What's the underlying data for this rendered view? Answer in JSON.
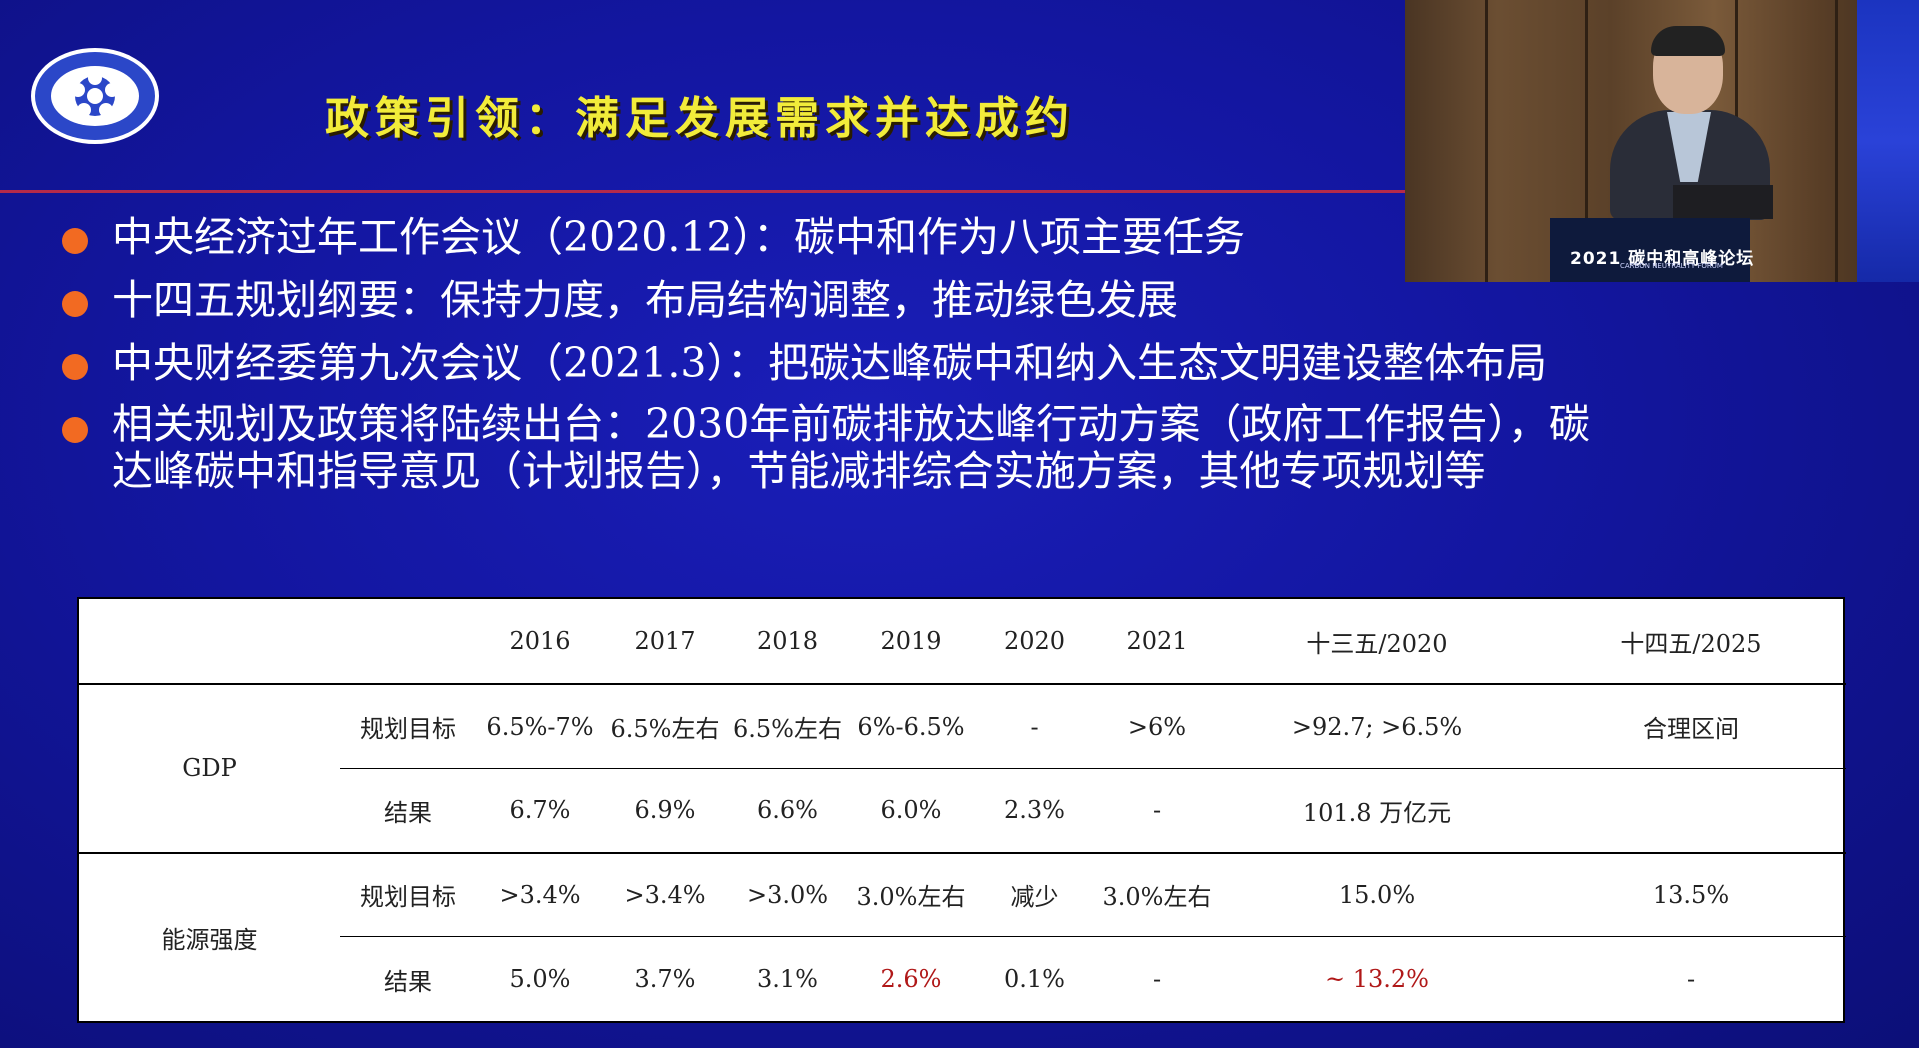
{
  "slide": {
    "title": "政策引领：满足发展需求并达成约",
    "bullets": [
      {
        "lines": [
          "中央经济过年工作会议（2020.12）：碳中和作为八项主要任务"
        ]
      },
      {
        "lines": [
          "十四五规划纲要：保持力度，布局结构调整，推动绿色发展"
        ]
      },
      {
        "lines": [
          "中央财经委第九次会议（2021.3）：把碳达峰碳中和纳入生态文明建设整体布局"
        ]
      },
      {
        "lines": [
          "相关规划及政策将陆续出台：2030年前碳排放达峰行动方案（政府工作报告），碳",
          "达峰碳中和指导意见（计划报告），节能减排综合实施方案，其他专项规划等"
        ]
      }
    ],
    "colors": {
      "background": "#1316a0",
      "title": "#f2ec3a",
      "rule": "#b52a4a",
      "bullet_dot": "#f26a22",
      "highlight": "#b01818"
    }
  },
  "table": {
    "headers": [
      "2016",
      "2017",
      "2018",
      "2019",
      "2020",
      "2021",
      "十三五/2020",
      "十四五/2025"
    ],
    "groups": [
      {
        "name": "GDP",
        "rows": [
          {
            "label": "规划目标",
            "cells": [
              "6.5%-7%",
              "6.5%左右",
              "6.5%左右",
              "6%-6.5%",
              "-",
              ">6%",
              ">92.7; >6.5%",
              "合理区间"
            ]
          },
          {
            "label": "结果",
            "cells": [
              "6.7%",
              "6.9%",
              "6.6%",
              "6.0%",
              "2.3%",
              "-",
              "101.8 万亿元",
              ""
            ]
          }
        ]
      },
      {
        "name": "能源强度",
        "rows": [
          {
            "label": "规划目标",
            "cells": [
              ">3.4%",
              ">3.4%",
              ">3.0%",
              "3.0%左右",
              "减少",
              "3.0%左右",
              "15.0%",
              "13.5%"
            ]
          },
          {
            "label": "结果",
            "cells": [
              "5.0%",
              "3.7%",
              "3.1%",
              "2.6%",
              "0.1%",
              "-",
              "~ 13.2%",
              "-"
            ]
          }
        ]
      }
    ]
  },
  "video": {
    "podium_text": "2021 碳中和高峰论坛",
    "podium_sub": "CARBON NEUTRALITY FORUM"
  }
}
